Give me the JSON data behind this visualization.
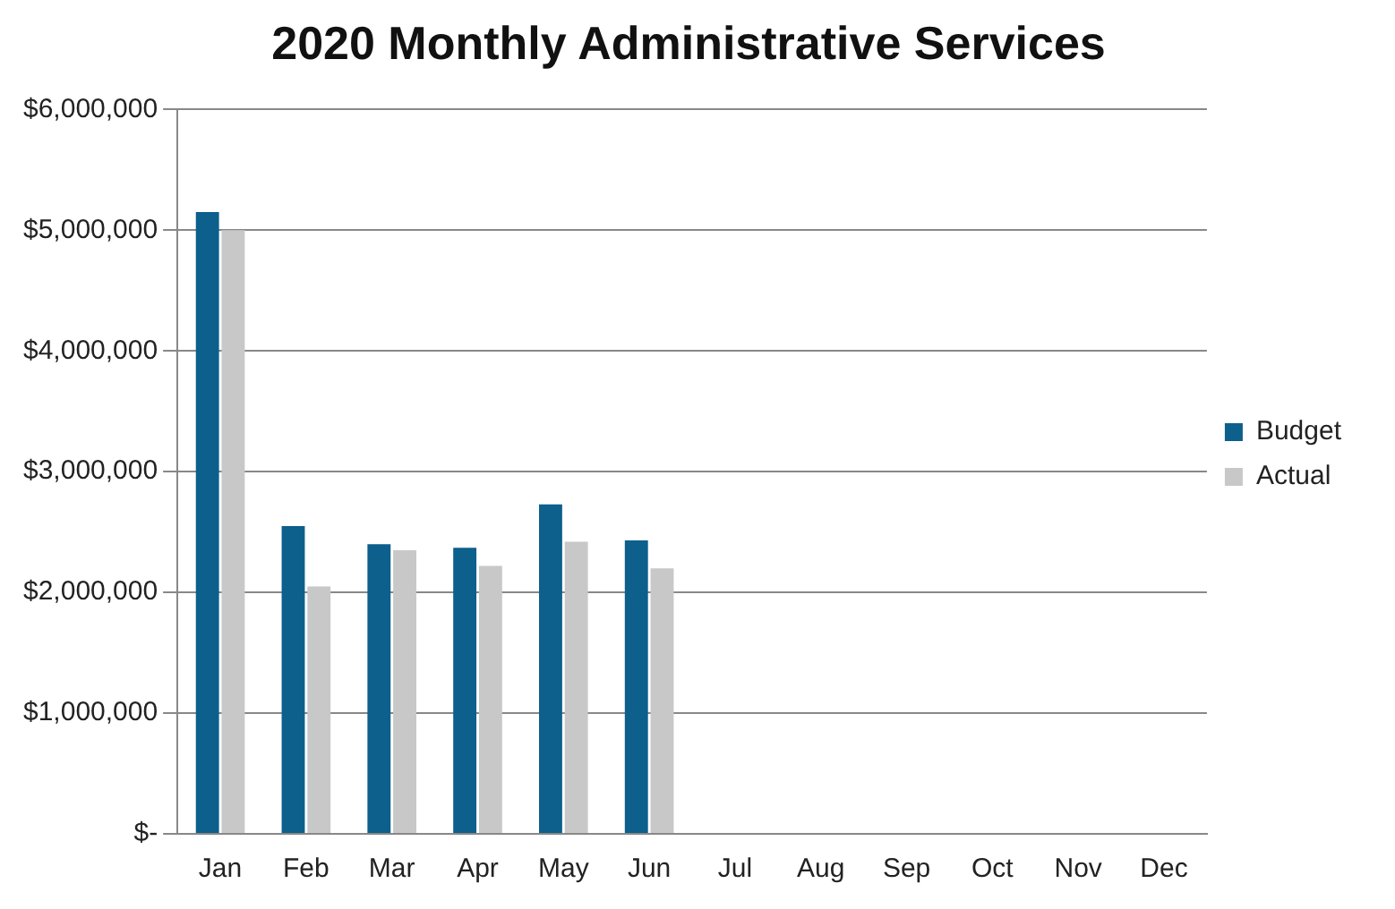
{
  "chart_data": {
    "type": "bar",
    "title": "2020 Monthly Administrative Services",
    "categories": [
      "Jan",
      "Feb",
      "Mar",
      "Apr",
      "May",
      "Jun",
      "Jul",
      "Aug",
      "Sep",
      "Oct",
      "Nov",
      "Dec"
    ],
    "series": [
      {
        "name": "Budget",
        "color": "#0d5f8c",
        "values": [
          5150000,
          2550000,
          2400000,
          2370000,
          2730000,
          2430000,
          0,
          0,
          0,
          0,
          0,
          0
        ]
      },
      {
        "name": "Actual",
        "color": "#c8c8c8",
        "values": [
          5000000,
          2050000,
          2350000,
          2220000,
          2420000,
          2200000,
          0,
          0,
          0,
          0,
          0,
          0
        ]
      }
    ],
    "ylim": [
      0,
      6000000
    ],
    "yticks": [
      {
        "value": 0,
        "label": "$-"
      },
      {
        "value": 1000000,
        "label": "$1,000,000"
      },
      {
        "value": 2000000,
        "label": "$2,000,000"
      },
      {
        "value": 3000000,
        "label": "$3,000,000"
      },
      {
        "value": 4000000,
        "label": "$4,000,000"
      },
      {
        "value": 5000000,
        "label": "$5,000,000"
      },
      {
        "value": 6000000,
        "label": "$6,000,000"
      }
    ],
    "grid": "y",
    "legend": "right"
  }
}
